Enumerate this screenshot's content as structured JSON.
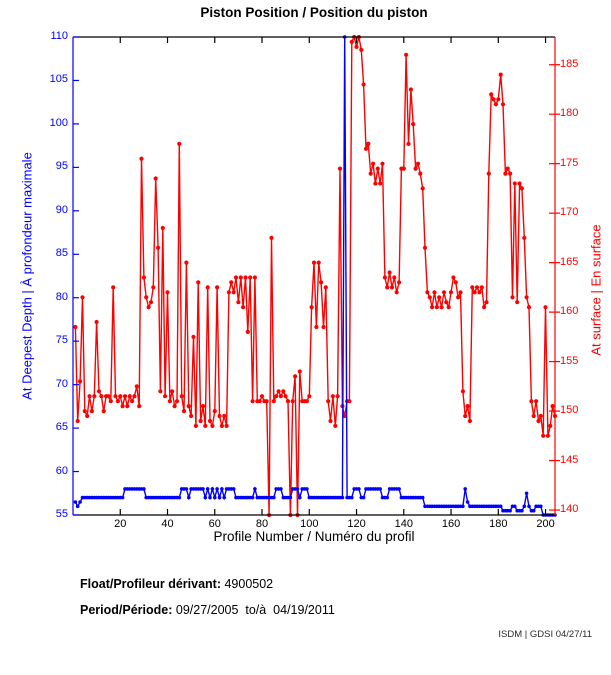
{
  "title": "Piston Position / Position du piston",
  "footer": {
    "float_label": "Float/Profileur dérivant:",
    "float_value": " 4900502",
    "period_label": "Period/Période:",
    "period_value": " 09/27/2005  to/à  04/19/2011",
    "stamp": "ISDM | GDSI 04/27/11"
  },
  "chart_data": {
    "type": "line",
    "title": "Piston Position / Position du piston",
    "xlabel": "Profile Number / Numéro du profil",
    "xlim": [
      0,
      204
    ],
    "x_ticks": [
      20,
      40,
      60,
      80,
      100,
      120,
      140,
      160,
      180,
      200
    ],
    "grid": false,
    "legend": "none",
    "left_axis": {
      "label": "At Deepest Depth | À profondeur maximale",
      "color": "#0000ff",
      "ylim": [
        55,
        110
      ],
      "ticks": [
        55,
        60,
        65,
        70,
        75,
        80,
        85,
        90,
        95,
        100,
        105,
        110
      ]
    },
    "right_axis": {
      "label": "At surface | En surface",
      "color": "#ff0000",
      "ylim": [
        139.5,
        187.8
      ],
      "ticks": [
        140,
        145,
        150,
        155,
        160,
        165,
        170,
        175,
        180,
        185
      ]
    },
    "series": [
      {
        "name": "At Deepest Depth | À profondeur maximale",
        "axis": "left",
        "color": "#0000ff",
        "x_start": 1,
        "values": [
          56.5,
          56,
          56.5,
          57,
          57,
          57,
          57,
          57,
          57,
          57,
          57,
          57,
          57,
          57,
          57,
          57,
          57,
          57,
          57,
          57,
          57,
          58,
          58,
          58,
          58,
          58,
          58,
          58,
          58,
          58,
          57,
          57,
          57,
          57,
          57,
          57,
          57,
          57,
          57,
          57,
          57,
          57,
          57,
          57,
          57,
          58,
          58,
          58,
          57,
          58,
          58,
          58,
          58,
          58,
          58,
          57,
          58,
          57,
          58,
          57,
          58,
          57,
          58,
          57,
          58,
          58,
          58,
          58,
          57,
          57,
          57,
          57,
          57,
          57,
          57,
          57,
          58,
          57,
          57,
          57,
          57,
          57,
          57,
          57,
          57,
          58,
          58,
          58,
          57,
          57,
          57,
          57,
          58,
          58,
          58,
          57,
          58,
          58,
          58,
          57,
          57,
          57,
          57,
          57,
          57,
          57,
          57,
          57,
          57,
          57,
          57,
          57,
          57,
          57,
          110,
          57,
          57,
          57,
          58,
          58,
          58,
          57,
          57,
          58,
          58,
          58,
          58,
          58,
          58,
          58,
          57,
          57,
          57,
          58,
          58,
          58,
          58,
          58,
          57,
          57,
          57,
          57,
          57,
          57,
          57,
          57,
          57,
          57,
          56,
          56,
          56,
          56,
          56,
          56,
          56,
          56,
          56,
          56,
          56,
          56,
          56,
          56,
          56,
          56,
          56,
          58,
          56.5,
          56,
          56,
          56,
          56,
          56,
          56,
          56,
          56,
          56,
          56,
          56,
          56,
          56,
          56,
          55.5,
          55.5,
          55.5,
          55.5,
          56,
          56,
          55.5,
          55.5,
          55.5,
          56,
          57.5,
          56,
          55.5,
          55.5,
          56,
          56,
          56,
          55,
          55,
          55,
          55,
          55,
          55
        ]
      },
      {
        "name": "At surface | En surface",
        "axis": "right",
        "color": "#ff0000",
        "x_start": 1,
        "values": [
          158.5,
          149,
          153,
          161.5,
          150,
          149.5,
          151.5,
          150,
          151.5,
          159,
          152,
          151.5,
          150,
          151.5,
          151.5,
          151,
          162.5,
          151.5,
          151,
          151.5,
          150.5,
          151.5,
          150.5,
          151.5,
          151,
          151.5,
          152.5,
          150.5,
          175.5,
          163.5,
          161.5,
          160.5,
          161,
          162.5,
          173.5,
          166.5,
          152,
          168.5,
          151.5,
          162,
          151,
          152,
          150.5,
          151,
          177,
          151.5,
          150,
          165,
          150.5,
          149.5,
          157.5,
          148.5,
          163,
          149,
          150.5,
          148.5,
          162.5,
          149,
          148.5,
          150,
          162.5,
          149.5,
          148.5,
          149.5,
          148.5,
          162,
          163,
          162,
          163.5,
          161,
          163.5,
          160.5,
          163.5,
          158,
          163.5,
          151,
          163.5,
          151,
          151,
          151.5,
          151,
          151,
          139.5,
          167.5,
          151,
          151.5,
          152,
          151.5,
          152,
          151.5,
          151,
          139.5,
          151,
          153.5,
          139.5,
          154,
          151,
          151,
          151,
          151.5,
          160.5,
          165,
          158.5,
          165,
          163,
          158.5,
          162.5,
          151,
          149,
          151.5,
          148.5,
          151.5,
          174.5,
          150.5,
          149.5,
          151,
          151,
          187.3,
          188,
          186.8,
          187.9,
          186.5,
          183,
          176.5,
          177,
          174,
          175,
          173,
          174.5,
          173,
          175,
          163.5,
          162.5,
          164,
          162.5,
          163.5,
          162,
          163,
          174.5,
          174.5,
          186,
          177,
          182.5,
          179,
          174.5,
          175,
          174,
          172.5,
          166.5,
          162,
          161.5,
          160.5,
          162,
          160.5,
          161.5,
          160.5,
          162,
          161,
          160.5,
          162,
          163.5,
          163,
          161.5,
          162,
          152,
          149.5,
          150.5,
          149,
          162.5,
          162,
          162.5,
          162,
          162.5,
          160.5,
          161,
          174,
          182,
          181.5,
          181,
          181.5,
          184,
          181,
          174,
          174.5,
          174,
          161.5,
          173,
          161,
          173,
          172.5,
          167.5,
          161.5,
          160.5,
          151,
          149.5,
          151,
          149,
          149.5,
          147.5,
          160.5,
          147.5,
          148.5,
          150.5,
          149.5
        ]
      }
    ]
  }
}
